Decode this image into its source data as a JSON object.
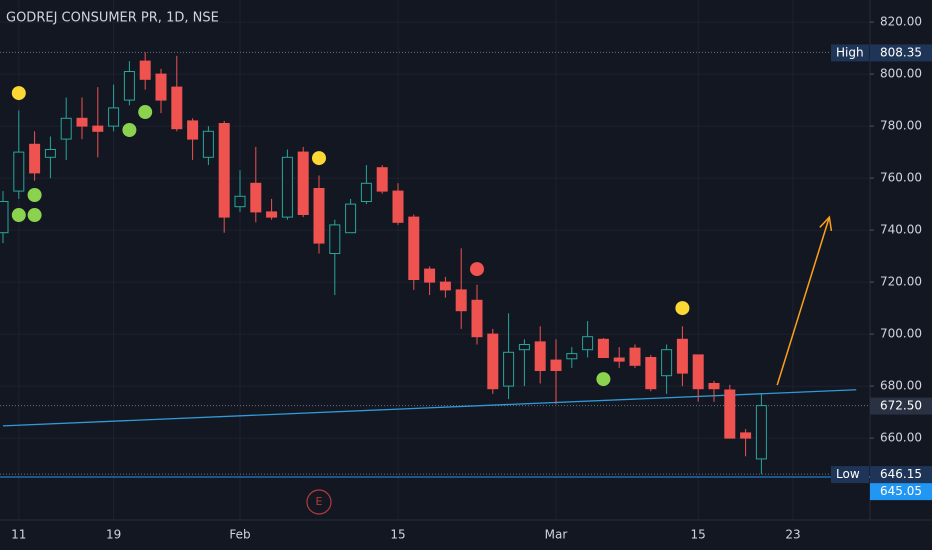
{
  "chart_data": {
    "type": "candlestick",
    "title": "GODREJ CONSUMER PR, 1D, NSE",
    "categories": [
      null,
      "11",
      null,
      null,
      null,
      null,
      null,
      "19",
      null,
      null,
      null,
      null,
      null,
      null,
      null,
      "Feb",
      null,
      null,
      null,
      null,
      null,
      null,
      null,
      null,
      null,
      "15",
      null,
      null,
      null,
      null,
      null,
      null,
      null,
      null,
      null,
      "Mar",
      null,
      null,
      null,
      null,
      null,
      null,
      null,
      null,
      "15",
      null,
      null,
      null,
      null,
      null,
      "23"
    ],
    "open": [
      739,
      755,
      773,
      768,
      775,
      783,
      780,
      780,
      790,
      805,
      800,
      795,
      782,
      768,
      781,
      749,
      758,
      747,
      745,
      770,
      756,
      731,
      739,
      751,
      764,
      755,
      745,
      725,
      720,
      717,
      713,
      700,
      680,
      694,
      697,
      690,
      690.5,
      694,
      698,
      690.8,
      694.6,
      691,
      684,
      698,
      692,
      681,
      678.5,
      662,
      652,
      null,
      null
    ],
    "high": [
      755,
      786,
      778,
      776,
      791,
      791,
      795,
      796,
      805,
      808.35,
      802,
      807,
      783,
      780,
      782,
      763,
      772,
      752,
      771,
      772,
      761,
      744,
      752,
      765,
      765,
      758,
      746,
      726,
      722,
      733,
      719,
      702,
      708,
      698,
      703,
      698,
      695,
      705,
      698.5,
      695,
      696,
      692,
      696,
      703,
      692,
      682,
      680.5,
      663.5,
      677,
      null,
      null
    ],
    "low": [
      735,
      752,
      759,
      760,
      767,
      775,
      768,
      778,
      788,
      794,
      785,
      778,
      767,
      765,
      739,
      747,
      743,
      744,
      744,
      745,
      731,
      715,
      739,
      750,
      754,
      742,
      717,
      715,
      714,
      702,
      696,
      677,
      675,
      680,
      681,
      673,
      687,
      691,
      691,
      687,
      687,
      678,
      677,
      680,
      674,
      674,
      660,
      653,
      646.15,
      null,
      null
    ],
    "close": [
      751,
      770,
      762,
      771,
      783,
      780,
      778,
      787,
      801,
      798,
      790,
      779,
      775,
      778,
      745,
      753,
      747,
      745,
      768,
      746,
      735,
      742,
      750,
      758,
      755,
      743,
      721,
      720,
      717,
      709,
      699,
      679,
      693,
      696,
      686,
      686,
      692.5,
      699,
      691,
      689.6,
      688,
      679,
      694,
      685,
      679,
      679,
      660,
      660,
      672.5,
      null,
      null
    ],
    "up_color": "#26a69a",
    "down_color": "#ef5350",
    "ylim": [
      628.5,
      828.5
    ],
    "yticks": [
      {
        "value": 660,
        "label": "660.00"
      },
      {
        "value": 680,
        "label": "680.00"
      },
      {
        "value": 700,
        "label": "700.00"
      },
      {
        "value": 720,
        "label": "720.00"
      },
      {
        "value": 740,
        "label": "740.00"
      },
      {
        "value": 760,
        "label": "760.00"
      },
      {
        "value": 780,
        "label": "780.00"
      },
      {
        "value": 800,
        "label": "800.00"
      },
      {
        "value": 820,
        "label": "820.00"
      }
    ],
    "grid": true,
    "price_lines": [
      {
        "name": "High",
        "value": 808.35,
        "color": "#1e3557",
        "style": "dotted"
      },
      {
        "value": 672.5,
        "label": "672.50",
        "color": "#2a3142",
        "style": "dotted"
      },
      {
        "name": "Low",
        "value": 646.15,
        "color": "#1e3557",
        "style": "dotted"
      },
      {
        "value": 645.05,
        "color": "#2196f3",
        "style": "solid"
      }
    ],
    "markers": [
      {
        "x": 1,
        "y": 792.7,
        "color": "#fdd835"
      },
      {
        "x": 2,
        "y": 753.5,
        "color": "#8bd34f"
      },
      {
        "x": 1,
        "y": 745.8,
        "color": "#8bd34f"
      },
      {
        "x": 2,
        "y": 745.8,
        "color": "#8bd34f"
      },
      {
        "x": 8,
        "y": 778.5,
        "color": "#8bd34f"
      },
      {
        "x": 9,
        "y": 785.4,
        "color": "#8bd34f"
      },
      {
        "x": 20,
        "y": 767.7,
        "color": "#fdd835"
      },
      {
        "x": 30,
        "y": 725,
        "color": "#f05350"
      },
      {
        "x": 38,
        "y": 682.7,
        "color": "#8bd34f"
      },
      {
        "x": 43,
        "y": 710,
        "color": "#fdd835"
      }
    ],
    "trendline": {
      "x": [
        0,
        54
      ],
      "values": [
        664.7,
        678.6
      ],
      "color": "#2f9bd6"
    },
    "arrow": {
      "x": [
        49,
        52.3
      ],
      "values": [
        680.4,
        745
      ],
      "color": "#ff9f1a"
    },
    "events": [
      {
        "x": 20,
        "label": "E",
        "color": "#b23b3b"
      }
    ]
  }
}
